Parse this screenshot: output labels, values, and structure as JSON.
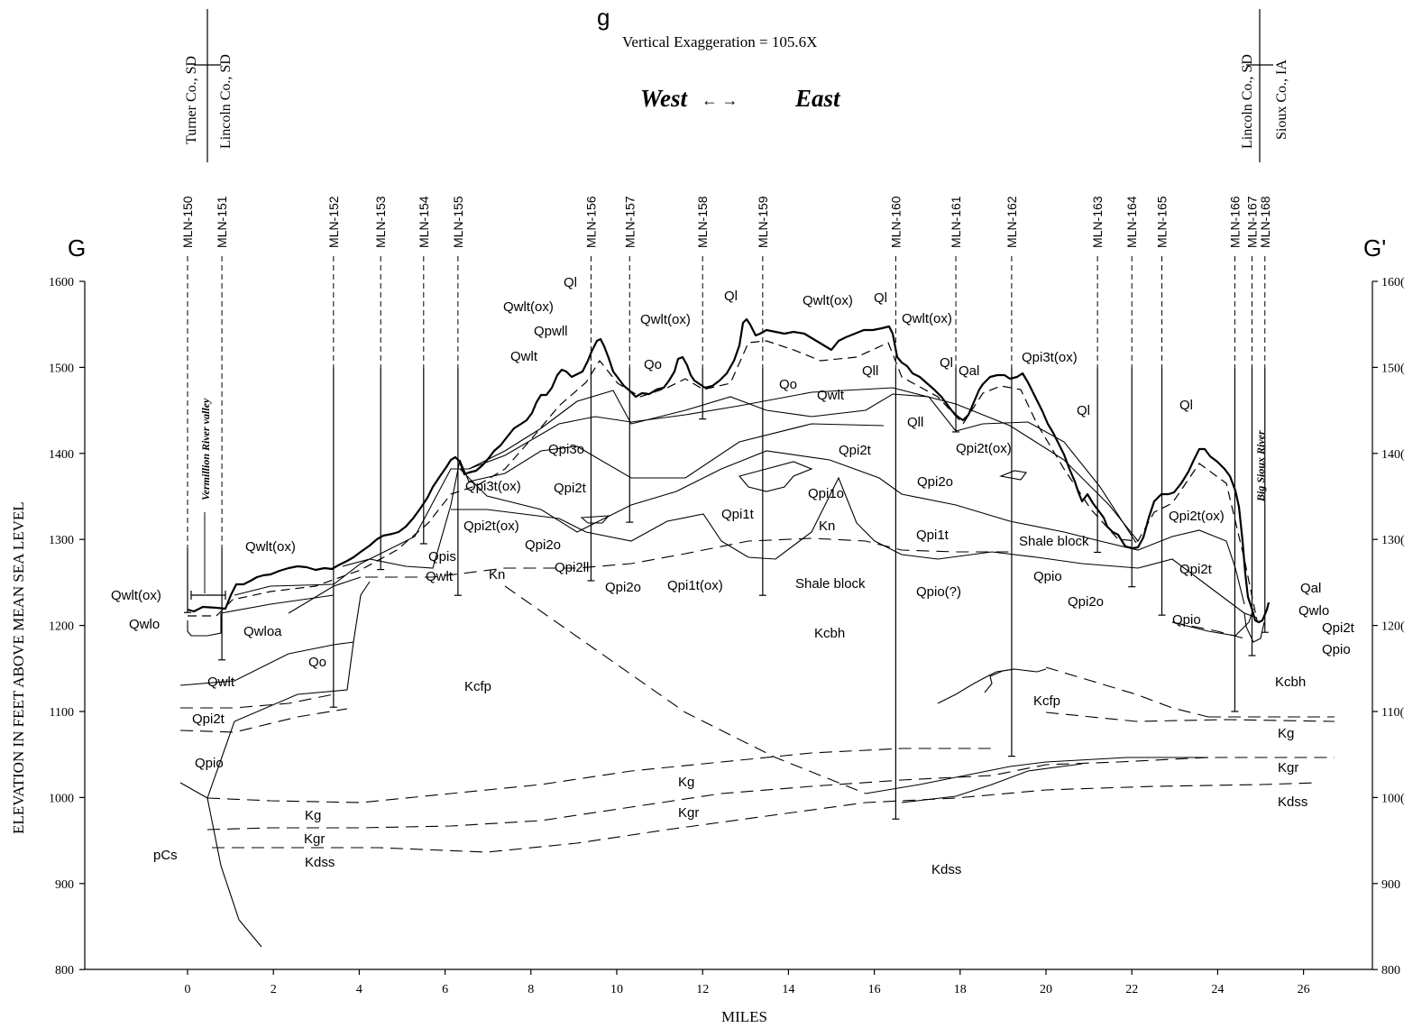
{
  "section": {
    "start_letter": "G",
    "end_letter": "G'",
    "title_fragment": "g",
    "vertical_exaggeration": "Vertical Exaggeration = 105.6X",
    "direction_west": "West",
    "direction_east": "East",
    "direction_arrows": "←       →",
    "x_axis_label": "MILES",
    "y_axis_label": "ELEVATION IN FEET ABOVE MEAN SEA LEVEL"
  },
  "counties": {
    "west_left": "Turner Co., SD",
    "west_right": "Lincoln Co., SD",
    "east_left": "Lincoln Co., SD",
    "east_right": "Sioux Co., IA"
  },
  "x_ticks": [
    "0",
    "2",
    "4",
    "6",
    "8",
    "10",
    "12",
    "14",
    "16",
    "18",
    "20",
    "22",
    "24",
    "26"
  ],
  "y_ticks": [
    "1600",
    "1500",
    "1400",
    "1300",
    "1200",
    "1100",
    "1000",
    "900",
    "800"
  ],
  "y_ticks_right": [
    "160(",
    "150(",
    "140(",
    "130(",
    "120(",
    "110(",
    "100(",
    "900",
    "800"
  ],
  "wells": [
    {
      "name": "MLN-150",
      "mile": 0.0,
      "bottom": 1215
    },
    {
      "name": "MLN-151",
      "mile": 0.8,
      "bottom": 1160
    },
    {
      "name": "MLN-152",
      "mile": 3.4,
      "bottom": 1105
    },
    {
      "name": "MLN-153",
      "mile": 4.5,
      "bottom": 1265
    },
    {
      "name": "MLN-154",
      "mile": 5.5,
      "bottom": 1295
    },
    {
      "name": "MLN-155",
      "mile": 6.3,
      "bottom": 1235
    },
    {
      "name": "MLN-156",
      "mile": 9.4,
      "bottom": 1252
    },
    {
      "name": "MLN-157",
      "mile": 10.3,
      "bottom": 1320
    },
    {
      "name": "MLN-158",
      "mile": 12.0,
      "bottom": 1440
    },
    {
      "name": "MLN-159",
      "mile": 13.4,
      "bottom": 1235
    },
    {
      "name": "MLN-160",
      "mile": 16.5,
      "bottom": 975
    },
    {
      "name": "MLN-161",
      "mile": 17.9,
      "bottom": 1425
    },
    {
      "name": "MLN-162",
      "mile": 19.2,
      "bottom": 1048
    },
    {
      "name": "MLN-163",
      "mile": 21.2,
      "bottom": 1285
    },
    {
      "name": "MLN-164",
      "mile": 22.0,
      "bottom": 1245
    },
    {
      "name": "MLN-165",
      "mile": 22.7,
      "bottom": 1212
    },
    {
      "name": "MLN-166",
      "mile": 24.4,
      "bottom": 1100
    },
    {
      "name": "MLN-167",
      "mile": 24.8,
      "bottom": 1165
    },
    {
      "name": "MLN-168",
      "mile": 25.1,
      "bottom": 1192
    }
  ],
  "valleys": {
    "vermillion": "Vermillion River valley",
    "big_sioux": "Big Sioux River"
  },
  "unit_labels": {
    "qwlt_ox": "Qwlt(ox)",
    "qwlo": "Qwlo",
    "qwloa": "Qwloa",
    "qwlt": "Qwlt",
    "qo": "Qo",
    "qpi2t": "Qpi2t",
    "qpio": "Qpio",
    "pcs": "pCs",
    "kg": "Kg",
    "kgr": "Kgr",
    "kdss": "Kdss",
    "kcfp": "Kcfp",
    "kn": "Kn",
    "kcbh": "Kcbh",
    "qpis": "Qpis",
    "qpi3t_ox": "Qpi3t(ox)",
    "qpi2t_ox": "Qpi2t(ox)",
    "qpi3o": "Qpi3o",
    "qpi2o": "Qpi2o",
    "qpi2ll": "Qpi2ll",
    "qpi1t_ox": "Qpi1t(ox)",
    "qpi1t": "Qpi1t",
    "qpi1o": "Qpi1o",
    "ql": "Ql",
    "qpwll": "Qpwll",
    "qll": "Qll",
    "qal": "Qal",
    "shale_block": "Shale block",
    "qpio_q": "Qpio(?)",
    "qpi3t_ox_e": "Qpi3t(ox)"
  }
}
